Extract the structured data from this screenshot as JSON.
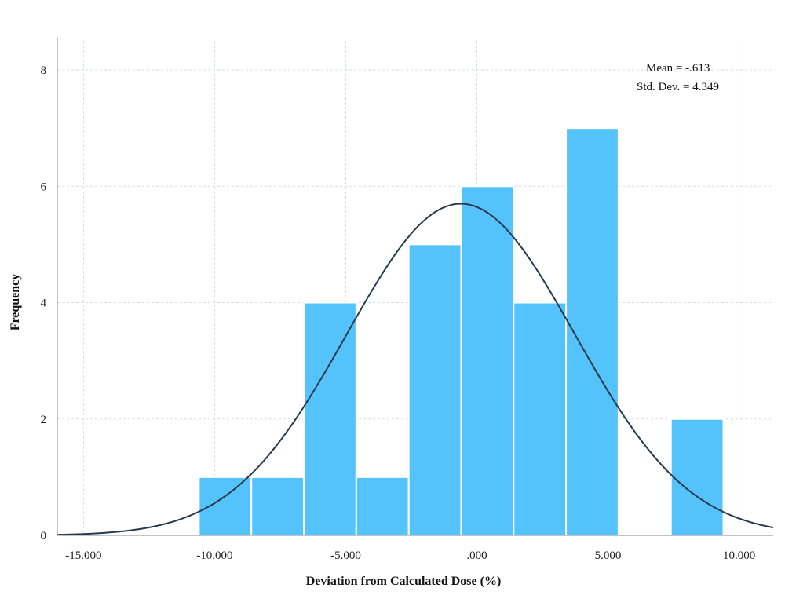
{
  "chart_data": {
    "type": "bar",
    "subtype": "histogram",
    "xlabel": "Deviation from Calculated Dose (%)",
    "ylabel": "Frequency",
    "xlim": [
      -16.0,
      11.3
    ],
    "ylim": [
      0,
      8.5
    ],
    "x_ticks": [
      -15,
      -10,
      -5,
      0,
      5,
      10
    ],
    "x_tick_labels": [
      "-15.000",
      "-10.000",
      "-5.000",
      ".000",
      "5.000",
      "10.000"
    ],
    "y_ticks": [
      0,
      2,
      4,
      6,
      8
    ],
    "y_tick_labels": [
      "0",
      "2",
      "4",
      "6",
      "8"
    ],
    "bin_edges": [
      -10.6,
      -8.6,
      -6.6,
      -4.6,
      -2.6,
      -0.6,
      1.4,
      3.4,
      5.4,
      7.4,
      9.4
    ],
    "values": [
      1,
      1,
      4,
      1,
      5,
      6,
      4,
      7,
      0,
      2
    ],
    "stats": {
      "mean_label": "Mean = -.613",
      "std_label": "Std. Dev. = 4.349"
    },
    "normal_curve": {
      "mean": -0.613,
      "std": 4.349,
      "peak": 5.7
    },
    "grid": true,
    "legend": "none",
    "colors": {
      "bar": "#55c3fb",
      "curve": "#27394a",
      "grid": "#d7dce0"
    }
  }
}
